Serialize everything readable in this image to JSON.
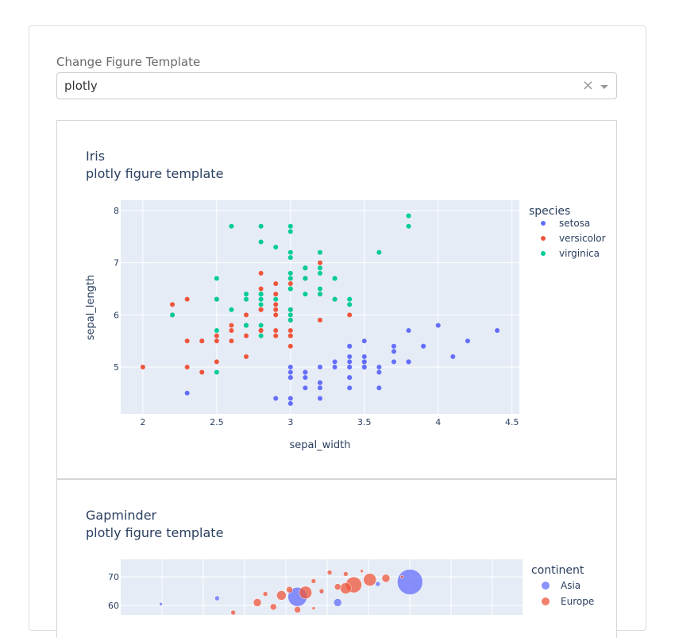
{
  "dropdown": {
    "label": "Change Figure Template",
    "value": "plotly",
    "clear_symbol": "×"
  },
  "colors": {
    "plot_bg": "#e5ecf6",
    "setosa": "#636efa",
    "versicolor": "#ef553b",
    "virginica": "#00cc96",
    "asia": "#636efa",
    "europe": "#ef553b"
  },
  "chart_data": [
    {
      "type": "scatter",
      "title": "Iris",
      "subtitle": "plotly figure template",
      "xlabel": "sepal_width",
      "ylabel": "sepal_length",
      "xlim": [
        1.85,
        4.55
      ],
      "ylim": [
        4.1,
        8.2
      ],
      "xticks": [
        "2",
        "2.5",
        "3",
        "3.5",
        "4",
        "4.5"
      ],
      "yticks": [
        "5",
        "6",
        "7",
        "8"
      ],
      "grid": true,
      "legend_title": "species",
      "legend_position": "right",
      "series": [
        {
          "name": "setosa",
          "color": "#636efa",
          "points": [
            [
              3.5,
              5.1
            ],
            [
              3.0,
              4.9
            ],
            [
              3.2,
              4.7
            ],
            [
              3.1,
              4.6
            ],
            [
              3.6,
              5.0
            ],
            [
              3.9,
              5.4
            ],
            [
              3.4,
              4.6
            ],
            [
              3.4,
              5.0
            ],
            [
              2.9,
              4.4
            ],
            [
              3.1,
              4.9
            ],
            [
              3.7,
              5.4
            ],
            [
              3.4,
              4.8
            ],
            [
              3.0,
              4.8
            ],
            [
              3.0,
              4.3
            ],
            [
              4.0,
              5.8
            ],
            [
              4.4,
              5.7
            ],
            [
              3.9,
              5.4
            ],
            [
              3.5,
              5.1
            ],
            [
              3.8,
              5.7
            ],
            [
              3.8,
              5.1
            ],
            [
              3.4,
              5.4
            ],
            [
              3.7,
              5.1
            ],
            [
              3.6,
              4.6
            ],
            [
              3.3,
              5.1
            ],
            [
              3.4,
              4.8
            ],
            [
              3.0,
              5.0
            ],
            [
              3.4,
              5.0
            ],
            [
              3.5,
              5.2
            ],
            [
              3.4,
              5.2
            ],
            [
              3.2,
              4.7
            ],
            [
              3.1,
              4.8
            ],
            [
              3.4,
              5.4
            ],
            [
              4.1,
              5.2
            ],
            [
              4.2,
              5.5
            ],
            [
              3.1,
              4.9
            ],
            [
              3.2,
              5.0
            ],
            [
              3.5,
              5.5
            ],
            [
              3.6,
              4.9
            ],
            [
              3.0,
              4.4
            ],
            [
              3.4,
              5.1
            ],
            [
              3.5,
              5.0
            ],
            [
              2.3,
              4.5
            ],
            [
              3.2,
              4.4
            ],
            [
              3.5,
              5.0
            ],
            [
              3.8,
              5.1
            ],
            [
              3.0,
              4.8
            ],
            [
              3.8,
              5.1
            ],
            [
              3.2,
              4.6
            ],
            [
              3.7,
              5.3
            ],
            [
              3.3,
              5.0
            ]
          ]
        },
        {
          "name": "versicolor",
          "color": "#ef553b",
          "points": [
            [
              3.2,
              7.0
            ],
            [
              3.2,
              6.4
            ],
            [
              3.1,
              6.9
            ],
            [
              2.3,
              5.5
            ],
            [
              2.8,
              6.5
            ],
            [
              2.8,
              5.7
            ],
            [
              3.3,
              6.3
            ],
            [
              2.4,
              4.9
            ],
            [
              2.9,
              6.6
            ],
            [
              2.7,
              5.2
            ],
            [
              2.0,
              5.0
            ],
            [
              3.0,
              5.9
            ],
            [
              2.2,
              6.0
            ],
            [
              2.9,
              6.1
            ],
            [
              2.9,
              5.6
            ],
            [
              3.1,
              6.7
            ],
            [
              3.0,
              5.6
            ],
            [
              2.7,
              5.8
            ],
            [
              2.2,
              6.2
            ],
            [
              2.5,
              5.6
            ],
            [
              3.2,
              5.9
            ],
            [
              2.8,
              6.1
            ],
            [
              2.5,
              6.3
            ],
            [
              2.8,
              6.1
            ],
            [
              2.9,
              6.4
            ],
            [
              3.0,
              6.6
            ],
            [
              2.8,
              6.8
            ],
            [
              3.0,
              6.7
            ],
            [
              2.9,
              6.0
            ],
            [
              2.6,
              5.7
            ],
            [
              2.4,
              5.5
            ],
            [
              2.4,
              5.5
            ],
            [
              2.7,
              5.8
            ],
            [
              2.7,
              6.0
            ],
            [
              3.0,
              5.4
            ],
            [
              3.4,
              6.0
            ],
            [
              3.1,
              6.7
            ],
            [
              2.3,
              6.3
            ],
            [
              3.0,
              5.6
            ],
            [
              2.5,
              5.5
            ],
            [
              2.6,
              5.5
            ],
            [
              3.0,
              6.1
            ],
            [
              2.6,
              5.8
            ],
            [
              2.3,
              5.0
            ],
            [
              2.7,
              5.6
            ],
            [
              3.0,
              5.7
            ],
            [
              2.9,
              5.7
            ],
            [
              2.9,
              6.2
            ],
            [
              2.5,
              5.1
            ],
            [
              2.8,
              5.7
            ]
          ]
        },
        {
          "name": "virginica",
          "color": "#00cc96",
          "points": [
            [
              3.3,
              6.3
            ],
            [
              2.7,
              5.8
            ],
            [
              3.0,
              7.1
            ],
            [
              2.9,
              6.3
            ],
            [
              3.0,
              6.5
            ],
            [
              3.0,
              7.6
            ],
            [
              2.5,
              4.9
            ],
            [
              2.9,
              7.3
            ],
            [
              2.5,
              6.7
            ],
            [
              3.6,
              7.2
            ],
            [
              3.2,
              6.5
            ],
            [
              2.7,
              6.4
            ],
            [
              3.0,
              6.8
            ],
            [
              2.5,
              5.7
            ],
            [
              2.8,
              5.8
            ],
            [
              3.2,
              6.4
            ],
            [
              3.0,
              6.5
            ],
            [
              3.8,
              7.7
            ],
            [
              2.6,
              7.7
            ],
            [
              2.2,
              6.0
            ],
            [
              3.2,
              6.9
            ],
            [
              2.8,
              5.6
            ],
            [
              2.8,
              7.7
            ],
            [
              2.7,
              6.3
            ],
            [
              3.3,
              6.7
            ],
            [
              3.2,
              7.2
            ],
            [
              2.8,
              6.2
            ],
            [
              3.0,
              6.1
            ],
            [
              2.8,
              6.4
            ],
            [
              3.0,
              7.2
            ],
            [
              2.8,
              7.4
            ],
            [
              3.8,
              7.9
            ],
            [
              2.8,
              6.4
            ],
            [
              2.8,
              6.3
            ],
            [
              2.6,
              6.1
            ],
            [
              3.0,
              7.7
            ],
            [
              3.4,
              6.3
            ],
            [
              3.1,
              6.4
            ],
            [
              3.0,
              6.0
            ],
            [
              3.1,
              6.9
            ],
            [
              3.1,
              6.7
            ],
            [
              3.1,
              6.9
            ],
            [
              2.7,
              5.8
            ],
            [
              3.2,
              6.8
            ],
            [
              3.3,
              6.7
            ],
            [
              3.0,
              6.7
            ],
            [
              2.5,
              6.3
            ],
            [
              3.0,
              6.5
            ],
            [
              3.4,
              6.2
            ],
            [
              3.0,
              5.9
            ]
          ]
        }
      ]
    },
    {
      "type": "scatter",
      "title": "Gapminder",
      "subtitle": "plotly figure template",
      "ylim": [
        56,
        76
      ],
      "yticks": [
        "70",
        "60"
      ],
      "grid": true,
      "legend_title": "continent",
      "legend_position": "right",
      "series": [
        {
          "name": "Asia",
          "color": "#636efa",
          "points": [
            [
              4.0,
              63.0,
              12
            ],
            [
              5.4,
              68.2,
              16
            ],
            [
              3.0,
              62.5,
              3
            ],
            [
              5.0,
              67.5,
              3
            ],
            [
              4.5,
              61.0,
              5
            ],
            [
              2.3,
              60.5,
              2
            ],
            [
              4.3,
              64.5,
              2
            ]
          ]
        },
        {
          "name": "Europe",
          "color": "#ef553b",
          "points": [
            [
              4.7,
              67.2,
              10
            ],
            [
              4.1,
              64.5,
              8
            ],
            [
              3.8,
              63.5,
              6
            ],
            [
              4.6,
              66.0,
              7
            ],
            [
              4.9,
              69.0,
              8
            ],
            [
              4.2,
              68.5,
              3
            ],
            [
              5.3,
              70.0,
              2
            ],
            [
              4.5,
              66.5,
              4
            ],
            [
              3.5,
              61.0,
              5
            ],
            [
              3.7,
              59.5,
              4
            ],
            [
              4.0,
              58.5,
              4
            ],
            [
              3.2,
              57.5,
              3
            ],
            [
              4.4,
              71.5,
              3
            ],
            [
              4.8,
              72.0,
              2
            ],
            [
              4.3,
              65.0,
              3
            ],
            [
              5.1,
              69.5,
              5
            ],
            [
              3.9,
              65.5,
              4
            ],
            [
              4.6,
              71.0,
              3
            ],
            [
              4.2,
              59.0,
              2
            ],
            [
              3.6,
              64.0,
              3
            ]
          ]
        }
      ]
    }
  ]
}
